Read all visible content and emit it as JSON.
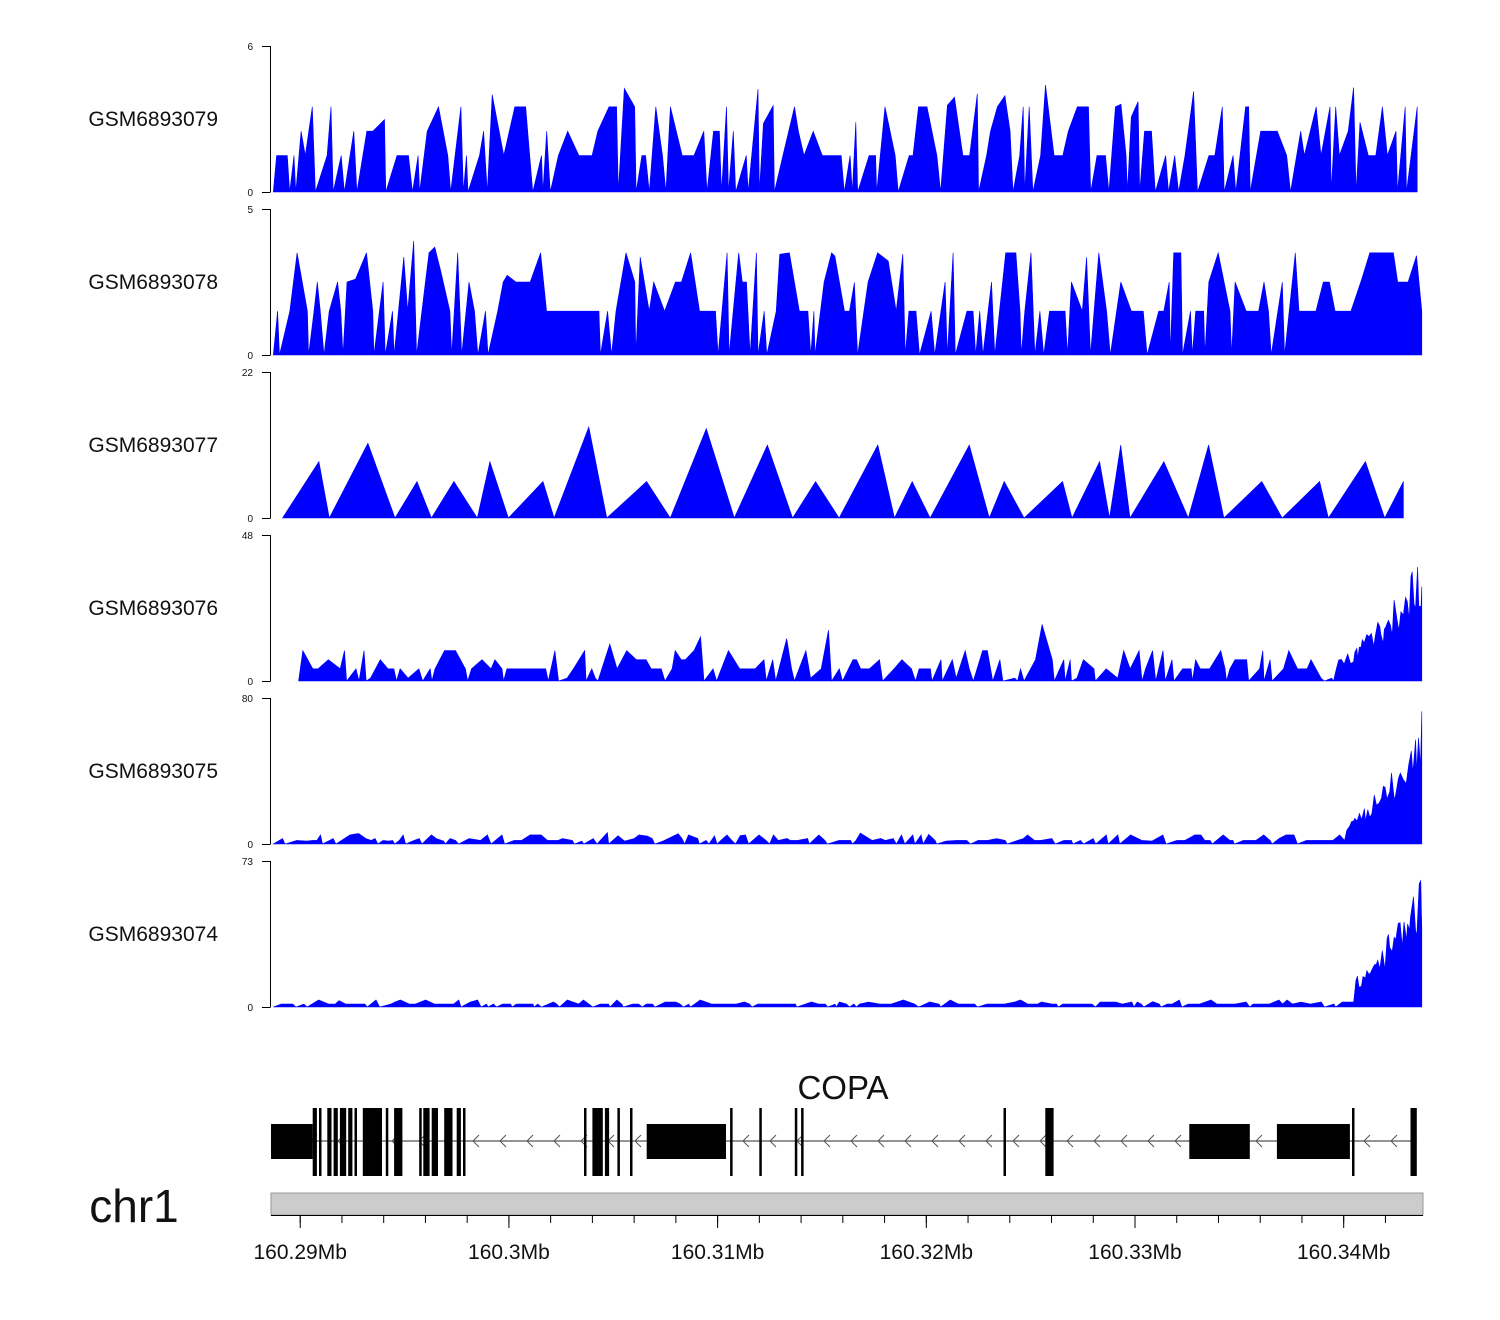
{
  "chart_data": {
    "type": "area",
    "title": "",
    "colors": {
      "signal": "#0000ff",
      "gene": "#000000",
      "ideogram": "#cccccc"
    },
    "genomic_range": [
      160288600,
      160343800
    ],
    "tracks": [
      {
        "name": "GSM6893079",
        "ylim": [
          0,
          6
        ],
        "yticks": [
          "0",
          "6"
        ]
      },
      {
        "name": "GSM6893078",
        "ylim": [
          0,
          5
        ],
        "yticks": [
          "0",
          "5"
        ]
      },
      {
        "name": "GSM6893077",
        "ylim": [
          0,
          22
        ],
        "yticks": [
          "0",
          "22"
        ]
      },
      {
        "name": "GSM6893076",
        "ylim": [
          0,
          48
        ],
        "yticks": [
          "0",
          "48"
        ]
      },
      {
        "name": "GSM6893075",
        "ylim": [
          0,
          80
        ],
        "yticks": [
          "0",
          "80"
        ]
      },
      {
        "name": "GSM6893074",
        "ylim": [
          0,
          73
        ],
        "yticks": [
          "0",
          "73"
        ]
      }
    ],
    "gene": {
      "name": "COPA",
      "strand": "-",
      "start": 160288600,
      "end": 160343500,
      "exons": [
        [
          160288600,
          160290600
        ],
        [
          160290600,
          160290800
        ],
        [
          160290900,
          160291000
        ],
        [
          160291300,
          160291500
        ],
        [
          160291600,
          160291800
        ],
        [
          160291900,
          160292200
        ],
        [
          160292300,
          160292500
        ],
        [
          160292600,
          160292700
        ],
        [
          160293000,
          160293800
        ],
        [
          160293800,
          160293900
        ],
        [
          160294100,
          160294200
        ],
        [
          160294500,
          160294900
        ],
        [
          160295700,
          160295800
        ],
        [
          160295900,
          160296200
        ],
        [
          160296300,
          160296600
        ],
        [
          160296900,
          160297300
        ],
        [
          160297500,
          160297700
        ],
        [
          160297800,
          160297900
        ],
        [
          160303600,
          160303700
        ],
        [
          160304000,
          160304500
        ],
        [
          160304600,
          160304800
        ],
        [
          160305200,
          160305300
        ],
        [
          160305800,
          160305900
        ],
        [
          160306600,
          160310400
        ],
        [
          160310600,
          160310700
        ],
        [
          160312000,
          160312100
        ],
        [
          160313700,
          160313800
        ],
        [
          160314000,
          160314100
        ],
        [
          160323700,
          160323800
        ],
        [
          160325700,
          160326100
        ],
        [
          160332600,
          160335500
        ],
        [
          160336800,
          160340300
        ],
        [
          160340400,
          160340500
        ],
        [
          160343200,
          160343500
        ]
      ]
    },
    "chromosome": "chr1",
    "x_ticks": [
      {
        "value": 160290000,
        "label": "160.29Mb"
      },
      {
        "value": 160300000,
        "label": "160.3Mb"
      },
      {
        "value": 160310000,
        "label": "160.31Mb"
      },
      {
        "value": 160320000,
        "label": "160.32Mb"
      },
      {
        "value": 160330000,
        "label": "160.33Mb"
      },
      {
        "value": 160340000,
        "label": "160.34Mb"
      }
    ],
    "x_minor_tick_step": 2000
  }
}
